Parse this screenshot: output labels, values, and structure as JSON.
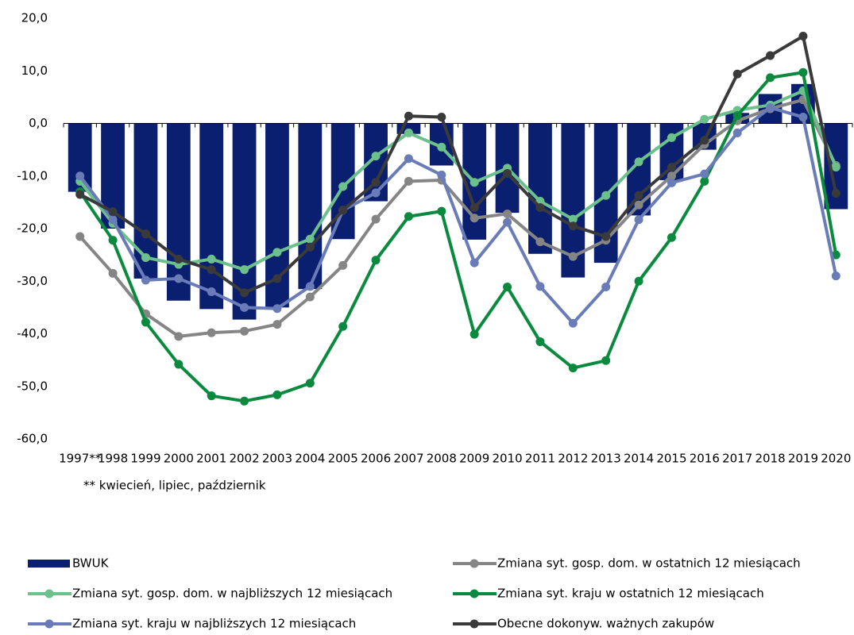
{
  "chart_data": {
    "type": "bar-line",
    "categories": [
      "1997**",
      "1998",
      "1999",
      "2000",
      "2001",
      "2002",
      "2003",
      "2004",
      "2005",
      "2006",
      "2007",
      "2008",
      "2009",
      "2010",
      "2011",
      "2012",
      "2013",
      "2014",
      "2015",
      "2016",
      "2017",
      "2018",
      "2019",
      "2020"
    ],
    "note": "** kwiecień, lipiec, październik",
    "ylim": [
      -60,
      20
    ],
    "yticks": [
      {
        "value": -60,
        "label": "-60,0"
      },
      {
        "value": -50,
        "label": "-50,0"
      },
      {
        "value": -40,
        "label": "-40,0"
      },
      {
        "value": -30,
        "label": "-30,0"
      },
      {
        "value": -20,
        "label": "-20,0"
      },
      {
        "value": -10,
        "label": "-10,0"
      },
      {
        "value": 0,
        "label": "0,0"
      },
      {
        "value": 10,
        "label": "10,0"
      },
      {
        "value": 20,
        "label": "20,0"
      }
    ],
    "series": [
      {
        "name": "BWUK",
        "type": "bar",
        "color": "#0b1f70",
        "values": [
          -13,
          -20,
          -29.5,
          -33.7,
          -35.3,
          -37.3,
          -35,
          -31.5,
          -22,
          -14.8,
          -2,
          -8,
          -22.1,
          -17,
          -24.8,
          -29.3,
          -26.5,
          -17.5,
          -10.8,
          -5,
          2,
          5.6,
          7.5,
          -16.3
        ]
      },
      {
        "name": "Zmiana syt. gosp. dom. w ostatnich 12 miesiącach",
        "type": "line",
        "color": "#858585",
        "values": [
          -21.5,
          -28.5,
          -36.2,
          -40.5,
          -39.8,
          -39.5,
          -38.2,
          -33,
          -27,
          -18.2,
          -11,
          -10.8,
          -18,
          -17.2,
          -22.5,
          -25.3,
          -22.2,
          -15.5,
          -10,
          -4,
          0.5,
          2.8,
          4.5,
          -8
        ]
      },
      {
        "name": "Zmiana syt. gosp. dom. w najbliższych 12 miesiącach",
        "type": "line",
        "color": "#6cc08b",
        "values": [
          -11,
          -19,
          -25.5,
          -26.8,
          -25.8,
          -27.8,
          -24.5,
          -22,
          -12,
          -6.2,
          -1.8,
          -4.5,
          -11.2,
          -8.5,
          -14.8,
          -18.2,
          -13.7,
          -7.3,
          -2.7,
          0.8,
          2.5,
          3.5,
          6.2,
          -8.3
        ]
      },
      {
        "name": "Zmiana syt. kraju w ostatnich 12 miesiącach",
        "type": "line",
        "color": "#0a8a3e",
        "values": [
          -13,
          -22.2,
          -37.8,
          -45.8,
          -51.8,
          -52.8,
          -51.6,
          -49.4,
          -38.6,
          -26,
          -17.7,
          -16.7,
          -40.1,
          -31.1,
          -41.5,
          -46.5,
          -45.1,
          -30,
          -21.7,
          -11,
          1.5,
          8.7,
          9.7,
          -25
        ]
      },
      {
        "name": "Zmiana syt. kraju w najbliższych 12 miesiącach",
        "type": "line",
        "color": "#6a7cb8",
        "values": [
          -10,
          -18.3,
          -29.8,
          -29.5,
          -32,
          -35,
          -35.2,
          -31,
          -16.5,
          -13.2,
          -6.7,
          -9.8,
          -26.5,
          -18.8,
          -31,
          -38,
          -31.1,
          -18.3,
          -11.3,
          -9.6,
          -1.8,
          3,
          1.2,
          -29
        ]
      },
      {
        "name": "Obecne dokonyw. ważnych zakupów",
        "type": "line",
        "color": "#3a3a3a",
        "values": [
          -13.5,
          -16.8,
          -21,
          -25.8,
          -27.8,
          -32.2,
          -29.5,
          -23.5,
          -16.5,
          -11.2,
          1.4,
          1.2,
          -16,
          -9.5,
          -16,
          -19.5,
          -21.5,
          -13.7,
          -8.3,
          -3.2,
          9.4,
          12.9,
          16.6,
          -13.3
        ]
      }
    ]
  }
}
